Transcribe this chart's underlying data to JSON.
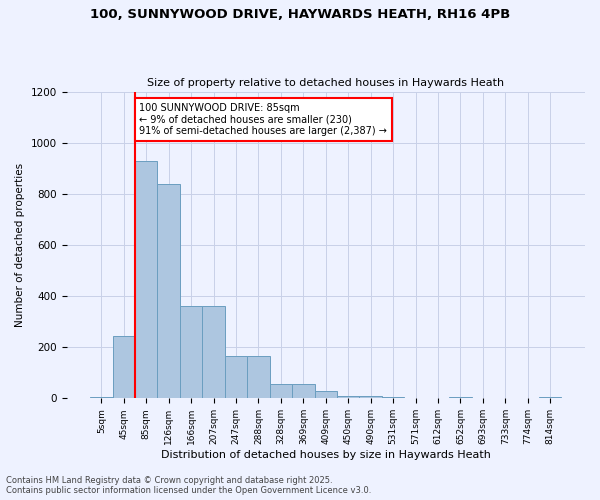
{
  "title_line1": "100, SUNNYWOOD DRIVE, HAYWARDS HEATH, RH16 4PB",
  "title_line2": "Size of property relative to detached houses in Haywards Heath",
  "xlabel": "Distribution of detached houses by size in Haywards Heath",
  "ylabel": "Number of detached properties",
  "categories": [
    "5sqm",
    "45sqm",
    "85sqm",
    "126sqm",
    "166sqm",
    "207sqm",
    "247sqm",
    "288sqm",
    "328sqm",
    "369sqm",
    "409sqm",
    "450sqm",
    "490sqm",
    "531sqm",
    "571sqm",
    "612sqm",
    "652sqm",
    "693sqm",
    "733sqm",
    "774sqm",
    "814sqm"
  ],
  "values": [
    5,
    245,
    930,
    840,
    360,
    360,
    165,
    165,
    55,
    55,
    30,
    10,
    10,
    5,
    0,
    0,
    5,
    0,
    0,
    0,
    5
  ],
  "bar_color": "#adc6e0",
  "bar_edge_color": "#6a9ec0",
  "red_line_index": 2,
  "annotation_text": "100 SUNNYWOOD DRIVE: 85sqm\n← 9% of detached houses are smaller (230)\n91% of semi-detached houses are larger (2,387) →",
  "annotation_box_color": "white",
  "annotation_border_color": "red",
  "ylim": [
    0,
    1200
  ],
  "yticks": [
    0,
    200,
    400,
    600,
    800,
    1000,
    1200
  ],
  "footnote1": "Contains HM Land Registry data © Crown copyright and database right 2025.",
  "footnote2": "Contains public sector information licensed under the Open Government Licence v3.0.",
  "bg_color": "#eef2ff",
  "grid_color": "#c8d0e8"
}
